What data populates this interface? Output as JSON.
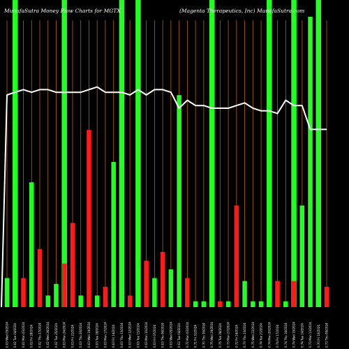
{
  "chart_data": {
    "type": "bar",
    "title_left": "MunafaSutra  Money Flow  Charts for MGTX",
    "title_right": "(Magenta Therapeutics, Inc) MunafaSutra.com",
    "colors": {
      "background": "#000000",
      "up": "#22ff22",
      "down": "#ff1a1a",
      "line": "#ffffff",
      "grid": "#b8620a"
    },
    "ylim": [
      0,
      100
    ],
    "grid": true,
    "categories": [
      "0.03 Wed 05/2024",
      "0.02 Tue 04/2024",
      "0.02 Mon 03/2024",
      "0.02 Fri 28/2024",
      "0.02 Thu 27/2024",
      "0.02 Wed 26/2024",
      "0.02 Tue 25/2024",
      "0.03 Mon 24/2024",
      "0.03 Fri 21/2024",
      "0.03 Thu 20/2024",
      "0.03 Wed 19/2024",
      "0.03 Tue 18/2024",
      "0.03 Mon 17/2024",
      "0.03 Fri 14/2024",
      "0.03 Thu 13/2024",
      "0.03 Wed 12/2024",
      "0.03 Tue 11/2024",
      "0.03 Mon 10/2024",
      "0.03 Fri 07/2024",
      "0.03 Thu 06/2024",
      "0.03 Wed 05/2024",
      "0.03 Tue 04/2024",
      "0.72 Mon 03/2024",
      "0.71 Fri 31/2024",
      "0.70 Thu 30/2024",
      "0.75 Wed 29/2024",
      "0.75 Tue 28/2024",
      "0.73 Mon 27/2024",
      "0.72 Fri 24/2024",
      "0.73 Thu 23/2024",
      "0.75 Wed 22/2024",
      "0.74 Tue 21/2024",
      "0.74 Mon 20/2024",
      "0.74 Fri 17/2024",
      "0.74 Thu 16/2024",
      "0.74 Wed 15/2024",
      "0.74 Tue 14/2024",
      "0.73 Mon 13/2024",
      "0.70 Fri 10/2024",
      "0.73 Thu 09/2024"
    ],
    "tall_marker": [
      false,
      true,
      false,
      false,
      false,
      false,
      false,
      true,
      false,
      false,
      false,
      false,
      false,
      false,
      true,
      false,
      true,
      false,
      false,
      false,
      false,
      false,
      false,
      false,
      false,
      true,
      false,
      false,
      false,
      false,
      false,
      false,
      true,
      false,
      false,
      true,
      false,
      false,
      true,
      false
    ],
    "directions": [
      "up",
      "up",
      "down",
      "up",
      "down",
      "up",
      "up",
      "down",
      "down",
      "up",
      "down",
      "up",
      "down",
      "up",
      "up",
      "down",
      "up",
      "down",
      "up",
      "down",
      "up",
      "up",
      "down",
      "up",
      "up",
      "up",
      "down",
      "up",
      "down",
      "up",
      "up",
      "up",
      "up",
      "down",
      "up",
      "down",
      "up",
      "up",
      "up",
      "down"
    ],
    "values": [
      10,
      33,
      10,
      43,
      20,
      4,
      8,
      15,
      29,
      4,
      61,
      4,
      7,
      50,
      37,
      4,
      28,
      16,
      10,
      19,
      13,
      73,
      10,
      2,
      2,
      1,
      2,
      2,
      35,
      9,
      2,
      2,
      7,
      9,
      2,
      9,
      35,
      100,
      100,
      7
    ],
    "line": [
      80,
      81,
      82,
      81,
      82,
      82,
      81,
      81,
      81,
      81,
      82,
      83,
      81,
      81,
      81,
      80,
      82,
      80,
      82,
      82,
      81,
      75,
      78,
      76,
      76,
      75,
      75,
      75,
      76,
      77,
      75,
      74,
      74,
      73,
      78,
      76,
      76,
      67,
      67,
      67
    ]
  }
}
